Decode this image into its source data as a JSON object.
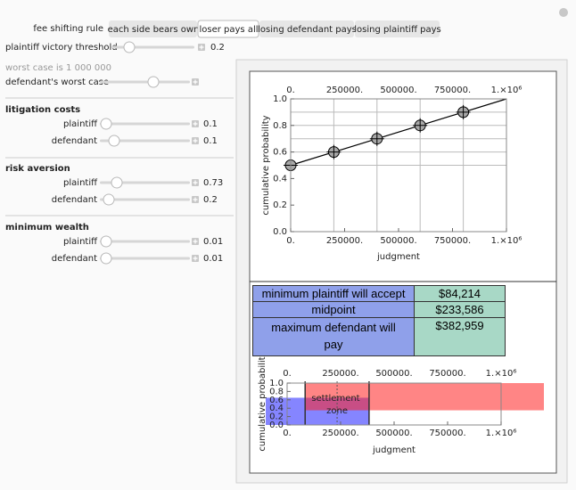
{
  "controls": {
    "fee_shifting": {
      "label": "fee shifting rule",
      "options": [
        "each side bears own",
        "loser pays all",
        "losing defendant pays",
        "losing plaintiff pays"
      ],
      "selected": 1
    },
    "threshold": {
      "label": "plaintiff victory threshold",
      "value": 0.2
    },
    "worst_case_note": "worst case is 1 000 000",
    "worst_case": {
      "label": "defendant's worst case"
    },
    "sections": [
      {
        "title": "litigation costs",
        "items": [
          {
            "label": "plaintiff",
            "value": 0.1
          },
          {
            "label": "defendant",
            "value": 0.1
          }
        ]
      },
      {
        "title": "risk aversion",
        "items": [
          {
            "label": "plaintiff",
            "value": 0.73
          },
          {
            "label": "defendant",
            "value": 0.2
          }
        ]
      },
      {
        "title": "minimum wealth",
        "items": [
          {
            "label": "plaintiff",
            "value": 0.01
          },
          {
            "label": "defendant",
            "value": 0.01
          }
        ]
      }
    ]
  },
  "chart_data": [
    {
      "type": "scatter",
      "xlabel": "judgment",
      "ylabel": "cumulative probability",
      "x": [
        0,
        200000,
        400000,
        600000,
        800000
      ],
      "values": [
        0.5,
        0.6,
        0.7,
        0.8,
        0.9
      ],
      "color": "#a8a8a8",
      "fit": {
        "x": [
          0,
          1000000
        ],
        "values": [
          0.5,
          1.0
        ],
        "color": "#000000"
      },
      "xlim": [
        0,
        1000000
      ],
      "ylim": [
        0,
        1
      ],
      "xticks": [
        {
          "value": 0,
          "label": "0."
        },
        {
          "value": 250000,
          "label": "250000."
        },
        {
          "value": 500000,
          "label": "500000."
        },
        {
          "value": 750000,
          "label": "750000."
        },
        {
          "value": 1000000,
          "label": "1.×10⁶"
        }
      ],
      "yticks": [
        {
          "value": 0,
          "label": "0.0"
        },
        {
          "value": 0.2,
          "label": "0.2"
        },
        {
          "value": 0.4,
          "label": "0.4"
        },
        {
          "value": 0.6,
          "label": "0.6"
        },
        {
          "value": 0.8,
          "label": "0.8"
        },
        {
          "value": 1,
          "label": "1.0"
        }
      ],
      "grid": true
    },
    {
      "type": "range",
      "xlabel": "judgment",
      "ylabel": "cumulative probabilit",
      "annotation": "settlement zone",
      "ranges": [
        {
          "x": [
            -100000,
            382959
          ],
          "y": [
            0,
            0.65
          ],
          "color": "#2020ff"
        },
        {
          "x": [
            84214,
            1200000
          ],
          "y": [
            0.35,
            1.0
          ],
          "color": "#ff2020"
        }
      ],
      "markers": [
        84214,
        233586,
        382959
      ],
      "xlim": [
        0,
        1000000
      ],
      "ylim": [
        0,
        1
      ],
      "xticks": [
        {
          "value": 0,
          "label": "0."
        },
        {
          "value": 250000,
          "label": "250000."
        },
        {
          "value": 500000,
          "label": "500000."
        },
        {
          "value": 750000,
          "label": "750000."
        },
        {
          "value": 1000000,
          "label": "1.×10⁶"
        }
      ],
      "yticks": [
        {
          "value": 0,
          "label": "0.0"
        },
        {
          "value": 0.2,
          "label": "0.2"
        },
        {
          "value": 0.4,
          "label": "0.4"
        },
        {
          "value": 0.6,
          "label": "0.6"
        },
        {
          "value": 0.8,
          "label": "0.8"
        },
        {
          "value": 1,
          "label": "1.0"
        }
      ]
    }
  ],
  "table": {
    "label_color": "#8fa0ea",
    "value_color": "#a8d8c6",
    "rows": [
      [
        "minimum plaintiff will accept",
        "$84,214"
      ],
      [
        "midpoint",
        "$233,586"
      ],
      [
        "maximum defendant will pay",
        "$382,959"
      ]
    ]
  }
}
